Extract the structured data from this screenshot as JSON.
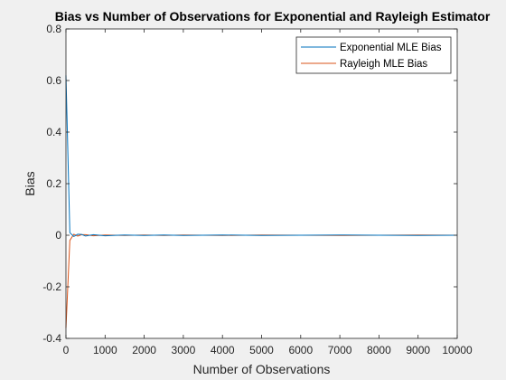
{
  "chart_data": {
    "type": "line",
    "title": "Bias vs Number of Observations for Exponential and Rayleigh Estimator",
    "xlabel": "Number of Observations",
    "ylabel": "Bias",
    "xlim": [
      0,
      10000
    ],
    "ylim": [
      -0.4,
      0.8
    ],
    "xticks": [
      0,
      1000,
      2000,
      3000,
      4000,
      5000,
      6000,
      7000,
      8000,
      9000,
      10000
    ],
    "xtick_labels": [
      "0",
      "1000",
      "2000",
      "3000",
      "4000",
      "5000",
      "6000",
      "7000",
      "8000",
      "9000",
      "10000"
    ],
    "yticks": [
      -0.4,
      -0.2,
      0,
      0.2,
      0.4,
      0.6,
      0.8
    ],
    "ytick_labels": [
      "-0.4",
      "-0.2",
      "0",
      "0.2",
      "0.4",
      "0.6",
      "0.8"
    ],
    "grid": false,
    "legend_position": "top-right",
    "series": [
      {
        "name": "Exponential MLE Bias",
        "color": "#0072bd",
        "x": [
          0,
          100,
          200,
          300,
          400,
          500,
          700,
          1000,
          1500,
          2000,
          2500,
          3000,
          4000,
          5000,
          6000,
          7000,
          8000,
          9000,
          10000
        ],
        "y": [
          0.62,
          0.01,
          -0.005,
          0.004,
          0.003,
          -0.003,
          0.002,
          -0.002,
          0.001,
          -0.001,
          0.001,
          -0.001,
          0.001,
          -0.001,
          0.0,
          0.001,
          0.0,
          -0.001,
          0.0
        ]
      },
      {
        "name": "Rayleigh MLE Bias",
        "color": "#d95319",
        "x": [
          0,
          100,
          200,
          300,
          400,
          500,
          700,
          1000,
          1500,
          2000,
          2500,
          3000,
          4000,
          5000,
          6000,
          7000,
          8000,
          9000,
          10000
        ],
        "y": [
          -0.36,
          -0.02,
          0.004,
          -0.003,
          0.002,
          0.002,
          -0.002,
          0.001,
          -0.001,
          0.001,
          -0.001,
          0.001,
          -0.001,
          0.001,
          0.0,
          -0.001,
          0.0,
          0.001,
          0.0
        ]
      }
    ]
  }
}
